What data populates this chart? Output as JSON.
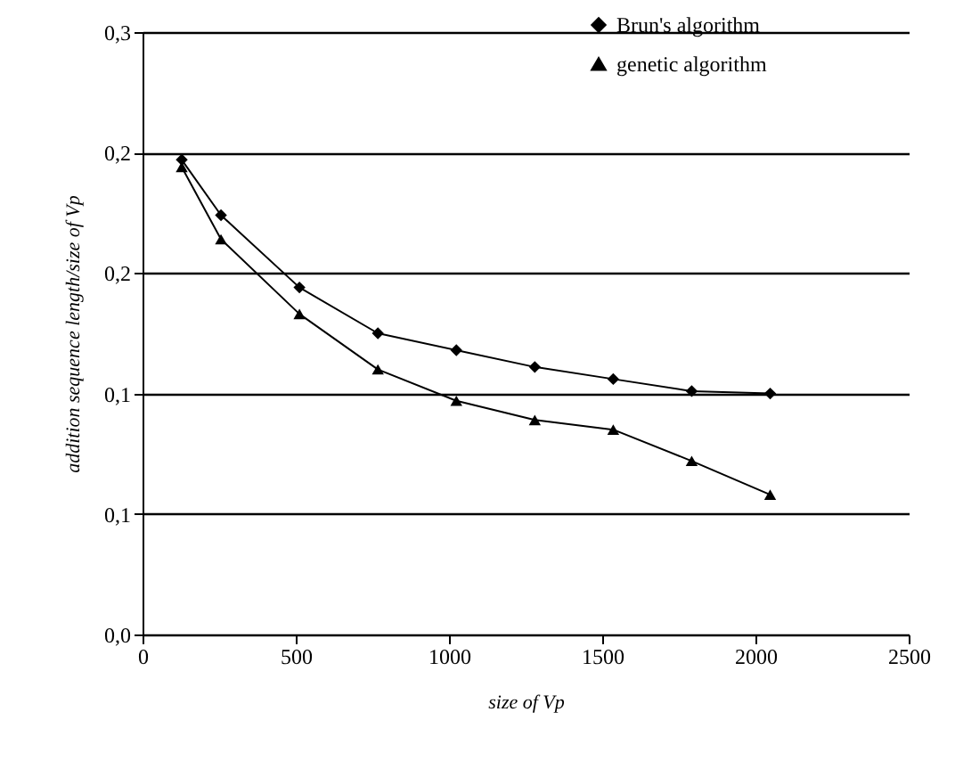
{
  "chart_data": {
    "type": "line",
    "xlabel": "size of Vp",
    "ylabel": "addition sequence length/size of Vp",
    "x": [
      128,
      256,
      512,
      768,
      1024,
      1280,
      1536,
      1792,
      2048
    ],
    "series": [
      {
        "name": "Brun's algorithm",
        "color": "#000000",
        "marker": "diamond",
        "values": [
          0.197,
          0.174,
          0.144,
          0.125,
          0.118,
          0.111,
          0.106,
          0.101,
          0.1
        ]
      },
      {
        "name": "genetic algorithm",
        "color": "#000000",
        "marker": "triangle",
        "values": [
          0.194,
          0.164,
          0.133,
          0.11,
          0.097,
          0.089,
          0.085,
          0.072,
          0.058
        ]
      }
    ],
    "xlim": [
      0,
      2500
    ],
    "xticks": [
      0,
      500,
      1000,
      1500,
      2000,
      2500
    ],
    "ylim": [
      0,
      0.25
    ],
    "yticks": [
      {
        "value": 0,
        "label": "0,0"
      },
      {
        "value": 0.05,
        "label": "0,1"
      },
      {
        "value": 0.1,
        "label": "0,1"
      },
      {
        "value": 0.15,
        "label": "0,2"
      },
      {
        "value": 0.2,
        "label": "0,2"
      },
      {
        "value": 0.25,
        "label": "0,3"
      }
    ],
    "grid": "y",
    "legend": "top right",
    "line_style": "solid"
  }
}
